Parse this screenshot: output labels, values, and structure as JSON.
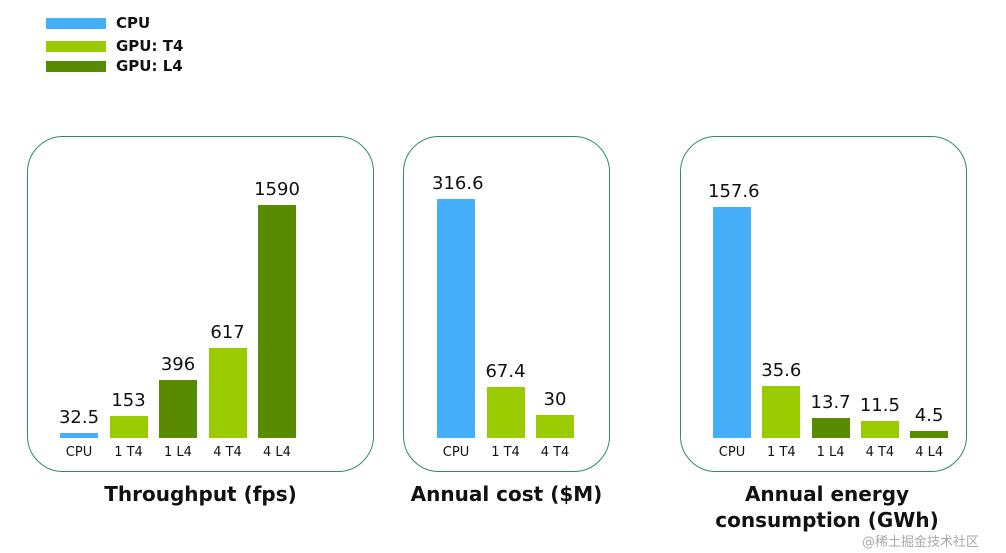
{
  "legend": [
    {
      "label": "CPU",
      "color": "#45aef8"
    },
    {
      "label": "GPU: T4",
      "color": "#9acb00"
    },
    {
      "label": "GPU: L4",
      "color": "#588b00"
    }
  ],
  "watermark": "@稀土掘金技术社区",
  "chart_data": [
    {
      "type": "bar",
      "title": "Throughput (fps)",
      "categories": [
        "CPU",
        "1 T4",
        "1 L4",
        "4 T4",
        "4 L4"
      ],
      "values": [
        32.5,
        153,
        396,
        617,
        1590
      ],
      "value_labels": [
        "32.5",
        "153",
        "396",
        "617",
        "1590"
      ],
      "series_of_bar": [
        "CPU",
        "GPU: T4",
        "GPU: L4",
        "GPU: T4",
        "GPU: L4"
      ],
      "grid": false,
      "legend": "top-left"
    },
    {
      "type": "bar",
      "title": "Annual cost ($M)",
      "categories": [
        "CPU",
        "1 T4",
        "4 T4"
      ],
      "values": [
        316.6,
        67.4,
        30
      ],
      "value_labels": [
        "316.6",
        "67.4",
        "30"
      ],
      "series_of_bar": [
        "CPU",
        "GPU: T4",
        "GPU: T4"
      ],
      "grid": false
    },
    {
      "type": "bar",
      "title": "Annual energy consumption (GWh)",
      "categories": [
        "CPU",
        "1 T4",
        "1 L4",
        "4 T4",
        "4 L4"
      ],
      "values": [
        157.6,
        35.6,
        13.7,
        11.5,
        4.5
      ],
      "value_labels": [
        "157.6",
        "35.6",
        "13.7",
        "11.5",
        "4.5"
      ],
      "series_of_bar": [
        "CPU",
        "GPU: T4",
        "GPU: L4",
        "GPU: T4",
        "GPU: L4"
      ],
      "grid": false
    }
  ]
}
